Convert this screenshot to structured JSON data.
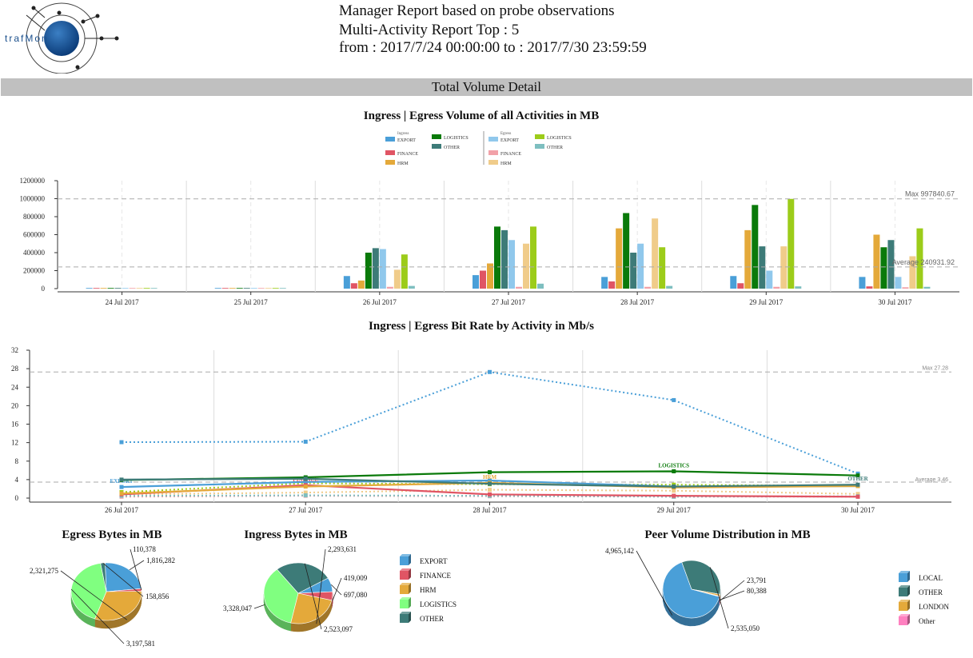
{
  "header": {
    "logo_text": "trafMon",
    "line1": "Manager Report based on probe observations",
    "line2": "Multi-Activity Report  Top : 5",
    "line3": "from : 2017/7/24 00:00:00 to : 2017/7/30 23:59:59"
  },
  "section_title": "Total Volume Detail",
  "colors": {
    "EXPORT": "#4a9fd8",
    "FINANCE": "#e05564",
    "HRM": "#e4a93a",
    "LOGISTICS": "#0a7a0a",
    "OTHER": "#3d7b78",
    "EXPORT_e": "#90c8ec",
    "FINANCE_e": "#f2a1a8",
    "HRM_e": "#f0cc8a",
    "LOGISTICS_e": "#9ccc1a",
    "OTHER_e": "#7ebfc0",
    "LOGISTICS_pie": "#80ff80",
    "LOCAL": "#4a9fd8",
    "LONDON": "#e4a93a",
    "Other": "#ff80c0"
  },
  "chart_data": [
    {
      "type": "bar",
      "title": "Ingress | Egress Volume of all Activities in MB",
      "legend_groups": [
        {
          "name": "Ingress",
          "items": [
            "EXPORT",
            "FINANCE",
            "HRM",
            "LOGISTICS",
            "OTHER"
          ]
        },
        {
          "name": "Egress",
          "items": [
            "EXPORT",
            "FINANCE",
            "HRM",
            "LOGISTICS",
            "OTHER"
          ]
        }
      ],
      "categories": [
        "24 Jul 2017",
        "25 Jul 2017",
        "26 Jul 2017",
        "27 Jul 2017",
        "28 Jul 2017",
        "29 Jul 2017",
        "30 Jul 2017"
      ],
      "series": [
        {
          "name": "EXPORT",
          "group": "Ingress",
          "values": [
            2000,
            2000,
            140000,
            150000,
            130000,
            140000,
            130000
          ]
        },
        {
          "name": "FINANCE",
          "group": "Ingress",
          "values": [
            1000,
            1000,
            60000,
            200000,
            80000,
            60000,
            25000
          ]
        },
        {
          "name": "HRM",
          "group": "Ingress",
          "values": [
            1000,
            1000,
            90000,
            280000,
            670000,
            650000,
            600000
          ]
        },
        {
          "name": "LOGISTICS",
          "group": "Ingress",
          "values": [
            2000,
            2000,
            400000,
            690000,
            840000,
            930000,
            460000
          ]
        },
        {
          "name": "OTHER",
          "group": "Ingress",
          "values": [
            1000,
            1000,
            450000,
            650000,
            400000,
            470000,
            540000
          ]
        },
        {
          "name": "EXPORT",
          "group": "Egress",
          "values": [
            2000,
            2000,
            440000,
            540000,
            500000,
            200000,
            130000
          ]
        },
        {
          "name": "FINANCE",
          "group": "Egress",
          "values": [
            1000,
            1000,
            20000,
            20000,
            20000,
            20000,
            15000
          ]
        },
        {
          "name": "HRM",
          "group": "Egress",
          "values": [
            1000,
            1000,
            210000,
            500000,
            780000,
            470000,
            360000
          ]
        },
        {
          "name": "LOGISTICS",
          "group": "Egress",
          "values": [
            2000,
            2000,
            380000,
            690000,
            460000,
            997840,
            670000
          ]
        },
        {
          "name": "OTHER",
          "group": "Egress",
          "values": [
            3000,
            3000,
            30000,
            55000,
            30000,
            25000,
            20000
          ]
        }
      ],
      "yticks": [
        "0",
        "200000",
        "400000",
        "600000",
        "800000",
        "1000000",
        "1200000"
      ],
      "ylim": [
        0,
        1200000
      ],
      "max_label": "Max 997840.67",
      "max_value": 997840.67,
      "avg_label": "Average 240931.92",
      "avg_value": 240931.92
    },
    {
      "type": "line",
      "title": "Ingress | Egress Bit Rate by Activity in Mb/s",
      "categories": [
        "26 Jul 2017",
        "27 Jul 2017",
        "28 Jul 2017",
        "29 Jul 2017",
        "30 Jul 2017"
      ],
      "yticks": [
        "0",
        "4",
        "8",
        "12",
        "16",
        "20",
        "24",
        "28",
        "32"
      ],
      "ylim": [
        0,
        32
      ],
      "max_label": "Max 27.28",
      "max_value": 27.28,
      "avg_label": "Average 3.46",
      "avg_value": 3.46,
      "series": [
        {
          "name": "EXPORT",
          "group": "Ingress",
          "values": [
            2.4,
            3.5,
            3.8,
            2.5,
            2.6
          ],
          "label": "EXPORT",
          "label_at": 0
        },
        {
          "name": "FINANCE",
          "group": "Ingress",
          "values": [
            0.8,
            2.8,
            0.8,
            0.5,
            0.3
          ],
          "label": "FINANCE",
          "label_at": 1
        },
        {
          "name": "HRM",
          "group": "Ingress",
          "values": [
            1.0,
            2.5,
            3.3,
            2.3,
            2.6
          ],
          "label": "HRM",
          "label_at": 2
        },
        {
          "name": "LOGISTICS",
          "group": "Ingress",
          "values": [
            3.9,
            4.5,
            5.6,
            5.8,
            4.9
          ],
          "label": "LOGISTICS",
          "label_at": 3
        },
        {
          "name": "OTHER",
          "group": "Ingress",
          "values": [
            4.0,
            4.2,
            3.1,
            2.5,
            2.9
          ],
          "label": "OTHER",
          "label_at": 4
        },
        {
          "name": "EXPORT",
          "group": "Egress",
          "values": [
            12.1,
            12.2,
            27.28,
            21.2,
            5.3
          ]
        },
        {
          "name": "FINANCE",
          "group": "Egress",
          "values": [
            0.3,
            0.5,
            0.4,
            0.3,
            0.3
          ]
        },
        {
          "name": "HRM",
          "group": "Egress",
          "values": [
            0.8,
            1.2,
            1.8,
            1.6,
            0.9
          ]
        },
        {
          "name": "LOGISTICS",
          "group": "Egress",
          "values": [
            1.3,
            3.2,
            3.0,
            2.9,
            2.6
          ]
        },
        {
          "name": "OTHER",
          "group": "Egress",
          "values": [
            0.5,
            0.6,
            0.5,
            0.3,
            0.4
          ]
        }
      ]
    },
    {
      "type": "pie",
      "title": "Egress Bytes in MB",
      "labels": [
        "EXPORT",
        "FINANCE",
        "HRM",
        "LOGISTICS",
        "OTHER"
      ],
      "values": [
        1816282,
        110378,
        2321275,
        3197581,
        158856
      ],
      "value_labels": [
        "1,816,282",
        "110,378",
        "2,321,275",
        "3,197,581",
        "158,856"
      ]
    },
    {
      "type": "pie",
      "title": "Ingress Bytes in MB",
      "labels": [
        "EXPORT",
        "FINANCE",
        "HRM",
        "LOGISTICS",
        "OTHER"
      ],
      "values": [
        697080,
        419009,
        2293631,
        3328047,
        2523097
      ],
      "value_labels": [
        "697,080",
        "419,009",
        "2,293,631",
        "3,328,047",
        "2,523,097"
      ],
      "legend": [
        "EXPORT",
        "FINANCE",
        "HRM",
        "LOGISTICS",
        "OTHER"
      ]
    },
    {
      "type": "pie",
      "title": "Peer Volume Distribution in MB",
      "labels": [
        "LOCAL",
        "OTHER",
        "LONDON",
        "Other"
      ],
      "values": [
        4965142,
        2535050,
        80388,
        23791
      ],
      "value_labels": [
        "4,965,142",
        "2,535,050",
        "80,388",
        "23,791"
      ],
      "legend": [
        "LOCAL",
        "OTHER",
        "LONDON",
        "Other"
      ]
    }
  ]
}
